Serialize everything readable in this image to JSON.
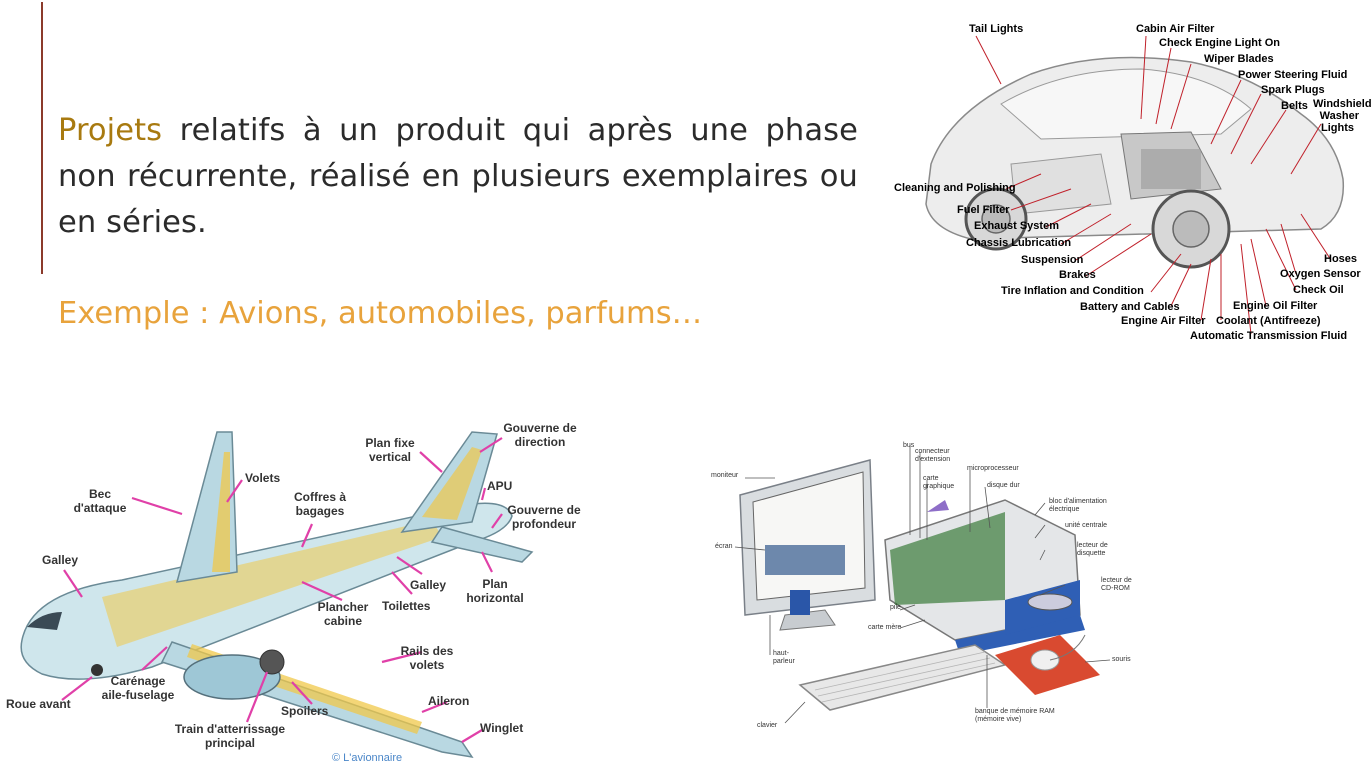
{
  "slide": {
    "highlight_word": "Projets",
    "paragraph_rest": " relatifs à un produit qui après une phase non récurrente, réalisé en plusieurs exemplaires ou en séries.",
    "example_label": "Exemple :",
    "example_text": " Avions, automobiles, parfums…"
  },
  "colors": {
    "accent_rule": "#8b3a2b",
    "highlight": "#a87a10",
    "example": "#e8a33c",
    "airplane_callout": "#e040a8",
    "car_callout": "#c0202a"
  },
  "car_figure": {
    "labels": [
      "Tail Lights",
      "Cabin Air Filter",
      "Check Engine Light On",
      "Wiper Blades",
      "Power Steering Fluid",
      "Spark Plugs",
      "Belts",
      "Windshield Washer",
      "Lights",
      "Cleaning and Polishing",
      "Fuel Filter",
      "Exhaust System",
      "Chassis Lubrication",
      "Suspension",
      "Brakes",
      "Tire Inflation and Condition",
      "Battery and Cables",
      "Engine Air Filter",
      "Coolant (Antifreeze)",
      "Automatic Transmission Fluid",
      "Hoses",
      "Oxygen Sensor",
      "Check Oil",
      "Engine Oil Filter"
    ]
  },
  "airplane_figure": {
    "labels": [
      "Gouverne de direction",
      "Plan fixe vertical",
      "APU",
      "Gouverne de profondeur",
      "Bec d'attaque",
      "Volets",
      "Coffres à bagages",
      "Galley",
      "Galley",
      "Toilettes",
      "Plan horizontal",
      "Plancher cabine",
      "Rails des volets",
      "Carénage aile-fuselage",
      "Roue avant",
      "Aileron",
      "Spoilers",
      "Winglet",
      "Train d'atterrissage principal"
    ],
    "credit": "© L'avionnaire"
  },
  "computer_figure": {
    "labels": [
      "moniteur",
      "bus",
      "connecteur d'extension",
      "carte graphique",
      "microprocesseur",
      "disque dur",
      "bloc d'alimentation électrique",
      "unité centrale",
      "lecteur de disquette",
      "écran",
      "lecteur de CD-ROM",
      "pile",
      "carte mère",
      "haut-parleur",
      "souris",
      "clavier",
      "banque de mémoire RAM (mémoire vive)"
    ]
  }
}
